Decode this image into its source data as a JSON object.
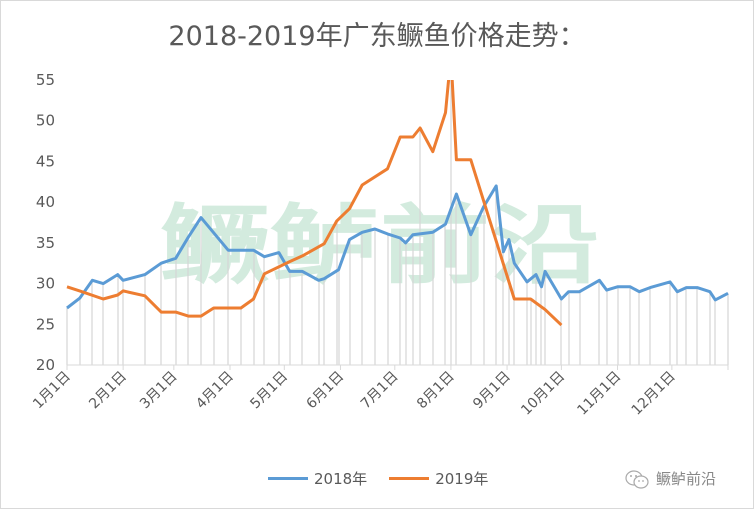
{
  "chart_data": {
    "type": "line",
    "title": "2018-2019年广东鳜鱼价格走势：",
    "xlabel": "",
    "ylabel": "",
    "ylim": [
      20,
      55
    ],
    "yticks": [
      20,
      25,
      30,
      35,
      40,
      45,
      50,
      55
    ],
    "x_unit": "day of year",
    "xlim": [
      0,
      365
    ],
    "xticks": [
      {
        "day": 0,
        "label": "1月1日"
      },
      {
        "day": 31,
        "label": "2月1日"
      },
      {
        "day": 59,
        "label": "3月1日"
      },
      {
        "day": 90,
        "label": "4月1日"
      },
      {
        "day": 120,
        "label": "5月1日"
      },
      {
        "day": 151,
        "label": "6月1日"
      },
      {
        "day": 181,
        "label": "7月1日"
      },
      {
        "day": 212,
        "label": "8月1日"
      },
      {
        "day": 243,
        "label": "9月1日"
      },
      {
        "day": 273,
        "label": "10月1日"
      },
      {
        "day": 304,
        "label": "11月1日"
      },
      {
        "day": 334,
        "label": "12月1日"
      }
    ],
    "legend_position": "bottom",
    "series": [
      {
        "name": "2018年",
        "color": "#5b9bd5",
        "points": [
          [
            0,
            27.0
          ],
          [
            7,
            28.2
          ],
          [
            14,
            30.4
          ],
          [
            20,
            30.0
          ],
          [
            28,
            31.1
          ],
          [
            31,
            30.4
          ],
          [
            43,
            31.1
          ],
          [
            52,
            32.5
          ],
          [
            60,
            33.1
          ],
          [
            67,
            35.7
          ],
          [
            74,
            38.1
          ],
          [
            89,
            34.1
          ],
          [
            103,
            34.1
          ],
          [
            109,
            33.3
          ],
          [
            117,
            33.8
          ],
          [
            123,
            31.5
          ],
          [
            130,
            31.5
          ],
          [
            139,
            30.4
          ],
          [
            142,
            30.6
          ],
          [
            150,
            31.7
          ],
          [
            156,
            35.4
          ],
          [
            163,
            36.3
          ],
          [
            170,
            36.7
          ],
          [
            177,
            36.1
          ],
          [
            184,
            35.6
          ],
          [
            187,
            35.0
          ],
          [
            191,
            36.0
          ],
          [
            202,
            36.3
          ],
          [
            209,
            37.3
          ],
          [
            215,
            41.0
          ],
          [
            223,
            36.0
          ],
          [
            230,
            39.4
          ],
          [
            237,
            42.0
          ],
          [
            241,
            33.9
          ],
          [
            244,
            35.4
          ],
          [
            247,
            32.5
          ],
          [
            254,
            30.2
          ],
          [
            259,
            31.1
          ],
          [
            262,
            29.6
          ],
          [
            264,
            31.5
          ],
          [
            273,
            28.1
          ],
          [
            277,
            29.0
          ],
          [
            283,
            29.0
          ],
          [
            294,
            30.4
          ],
          [
            298,
            29.2
          ],
          [
            304,
            29.6
          ],
          [
            311,
            29.6
          ],
          [
            316,
            29.0
          ],
          [
            322,
            29.5
          ],
          [
            333,
            30.2
          ],
          [
            337,
            29.0
          ],
          [
            342,
            29.5
          ],
          [
            348,
            29.5
          ],
          [
            355,
            29.0
          ],
          [
            358,
            28.0
          ],
          [
            365,
            28.8
          ]
        ]
      },
      {
        "name": "2019年",
        "color": "#ed7d31",
        "points": [
          [
            0,
            29.6
          ],
          [
            7,
            29.1
          ],
          [
            20,
            28.1
          ],
          [
            28,
            28.6
          ],
          [
            31,
            29.1
          ],
          [
            43,
            28.5
          ],
          [
            52,
            26.5
          ],
          [
            60,
            26.5
          ],
          [
            67,
            26.0
          ],
          [
            74,
            26.0
          ],
          [
            81,
            27.0
          ],
          [
            96,
            27.0
          ],
          [
            103,
            28.1
          ],
          [
            109,
            31.2
          ],
          [
            123,
            32.7
          ],
          [
            130,
            33.4
          ],
          [
            142,
            34.9
          ],
          [
            149,
            37.7
          ],
          [
            156,
            39.2
          ],
          [
            163,
            42.1
          ],
          [
            177,
            44.1
          ],
          [
            184,
            48.0
          ],
          [
            191,
            48.0
          ],
          [
            195,
            49.1
          ],
          [
            202,
            46.2
          ],
          [
            209,
            51.0
          ],
          [
            212,
            58.0
          ],
          [
            215,
            45.2
          ],
          [
            223,
            45.2
          ],
          [
            247,
            28.1
          ],
          [
            256,
            28.1
          ],
          [
            264,
            26.8
          ],
          [
            273,
            24.9
          ]
        ]
      }
    ]
  },
  "watermark": "鳜鲈前沿",
  "logo": {
    "text": "鳜鲈前沿",
    "icon": "wechat-icon"
  }
}
